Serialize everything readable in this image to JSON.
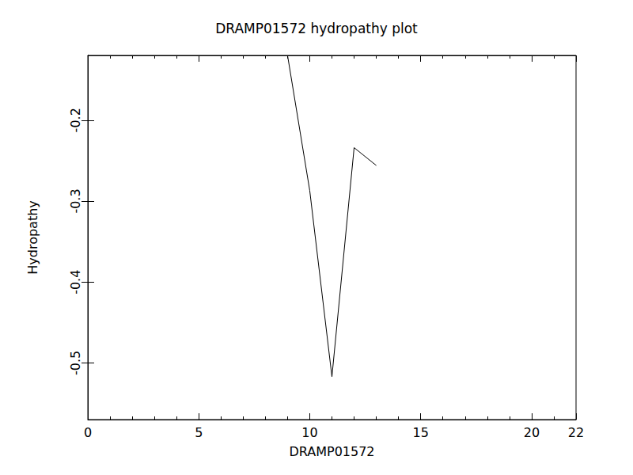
{
  "chart_data": {
    "type": "line",
    "title": "DRAMP01572 hydropathy plot",
    "x_label": "DRAMP01572",
    "y_label": "Hydropathy",
    "x": [
      9,
      10,
      11,
      12,
      13
    ],
    "values": [
      -0.12,
      -0.287,
      -0.517,
      -0.234,
      -0.256
    ],
    "color": "#000000",
    "xlim": [
      0,
      22
    ],
    "xticks": [
      0,
      5,
      10,
      15,
      20
    ],
    "ylim": [
      -0.57,
      -0.12
    ],
    "yticks": [
      -0.5,
      -0.4,
      -0.3,
      -0.2
    ],
    "grid": false
  }
}
